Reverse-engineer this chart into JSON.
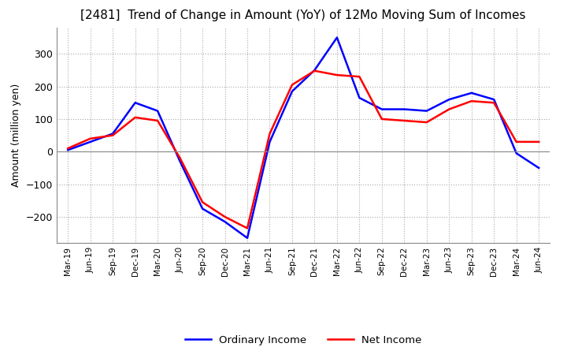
{
  "title": "[2481]  Trend of Change in Amount (YoY) of 12Mo Moving Sum of Incomes",
  "ylabel": "Amount (million yen)",
  "ylim": [
    -280,
    380
  ],
  "yticks": [
    -200,
    -100,
    0,
    100,
    200,
    300
  ],
  "x_labels": [
    "Mar-19",
    "Jun-19",
    "Sep-19",
    "Dec-19",
    "Mar-20",
    "Jun-20",
    "Sep-20",
    "Dec-20",
    "Mar-21",
    "Jun-21",
    "Sep-21",
    "Dec-21",
    "Mar-22",
    "Jun-22",
    "Sep-22",
    "Dec-22",
    "Mar-23",
    "Jun-23",
    "Sep-23",
    "Dec-23",
    "Mar-24",
    "Jun-24"
  ],
  "ordinary_income": [
    5,
    30,
    55,
    150,
    125,
    -30,
    -175,
    -215,
    -265,
    30,
    185,
    250,
    350,
    165,
    130,
    130,
    125,
    160,
    180,
    160,
    -5,
    -50
  ],
  "net_income": [
    10,
    40,
    50,
    105,
    95,
    -20,
    -155,
    -200,
    -235,
    55,
    205,
    248,
    235,
    230,
    100,
    95,
    90,
    130,
    155,
    150,
    30,
    30
  ],
  "ordinary_color": "#0000ff",
  "net_color": "#ff0000",
  "background_color": "#ffffff",
  "grid_color": "#aaaaaa",
  "title_fontsize": 11,
  "legend_labels": [
    "Ordinary Income",
    "Net Income"
  ]
}
